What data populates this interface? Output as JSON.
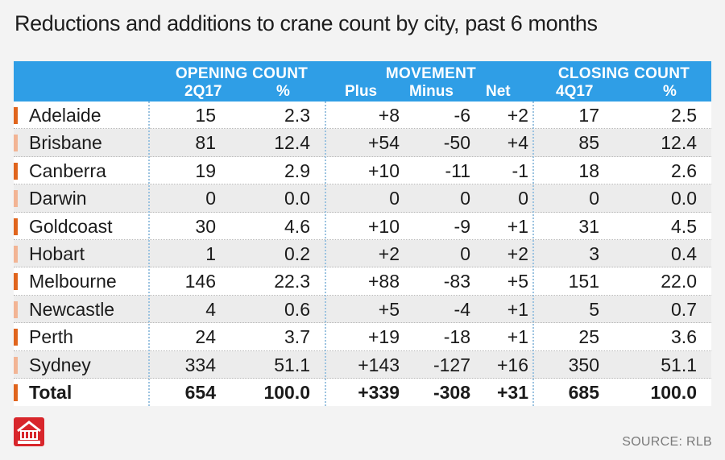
{
  "title": "Reductions and additions to crane count by city, past 6 months",
  "source": "SOURCE: RLB",
  "colors": {
    "header_bg": "#2f9ee6",
    "bar_dark": "#e0641c",
    "bar_light": "#f2b494",
    "logo": "#d8262b"
  },
  "chart_data": {
    "type": "table",
    "title": "Reductions and additions to crane count by city, past 6 months",
    "groups": [
      "OPENING COUNT",
      "MOVEMENT",
      "CLOSING COUNT"
    ],
    "columns": [
      "2Q17",
      "%",
      "Plus",
      "Minus",
      "Net",
      "4Q17",
      "%"
    ],
    "rows": [
      {
        "city": "Adelaide",
        "open": "15",
        "open_pct": "2.3",
        "plus": "+8",
        "minus": "-6",
        "net": "+2",
        "close": "17",
        "close_pct": "2.5",
        "accent": "dark"
      },
      {
        "city": "Brisbane",
        "open": "81",
        "open_pct": "12.4",
        "plus": "+54",
        "minus": "-50",
        "net": "+4",
        "close": "85",
        "close_pct": "12.4",
        "accent": "light"
      },
      {
        "city": "Canberra",
        "open": "19",
        "open_pct": "2.9",
        "plus": "+10",
        "minus": "-11",
        "net": "-1",
        "close": "18",
        "close_pct": "2.6",
        "accent": "dark"
      },
      {
        "city": "Darwin",
        "open": "0",
        "open_pct": "0.0",
        "plus": "0",
        "minus": "0",
        "net": "0",
        "close": "0",
        "close_pct": "0.0",
        "accent": "light"
      },
      {
        "city": "Goldcoast",
        "open": "30",
        "open_pct": "4.6",
        "plus": "+10",
        "minus": "-9",
        "net": "+1",
        "close": "31",
        "close_pct": "4.5",
        "accent": "dark"
      },
      {
        "city": "Hobart",
        "open": "1",
        "open_pct": "0.2",
        "plus": "+2",
        "minus": "0",
        "net": "+2",
        "close": "3",
        "close_pct": "0.4",
        "accent": "light"
      },
      {
        "city": "Melbourne",
        "open": "146",
        "open_pct": "22.3",
        "plus": "+88",
        "minus": "-83",
        "net": "+5",
        "close": "151",
        "close_pct": "22.0",
        "accent": "dark"
      },
      {
        "city": "Newcastle",
        "open": "4",
        "open_pct": "0.6",
        "plus": "+5",
        "minus": "-4",
        "net": "+1",
        "close": "5",
        "close_pct": "0.7",
        "accent": "light"
      },
      {
        "city": "Perth",
        "open": "24",
        "open_pct": "3.7",
        "plus": "+19",
        "minus": "-18",
        "net": "+1",
        "close": "25",
        "close_pct": "3.6",
        "accent": "dark"
      },
      {
        "city": "Sydney",
        "open": "334",
        "open_pct": "51.1",
        "plus": "+143",
        "minus": "-127",
        "net": "+16",
        "close": "350",
        "close_pct": "51.1",
        "accent": "light"
      },
      {
        "city": "Total",
        "open": "654",
        "open_pct": "100.0",
        "plus": "+339",
        "minus": "-308",
        "net": "+31",
        "close": "685",
        "close_pct": "100.0",
        "accent": "dark",
        "total": true
      }
    ]
  }
}
